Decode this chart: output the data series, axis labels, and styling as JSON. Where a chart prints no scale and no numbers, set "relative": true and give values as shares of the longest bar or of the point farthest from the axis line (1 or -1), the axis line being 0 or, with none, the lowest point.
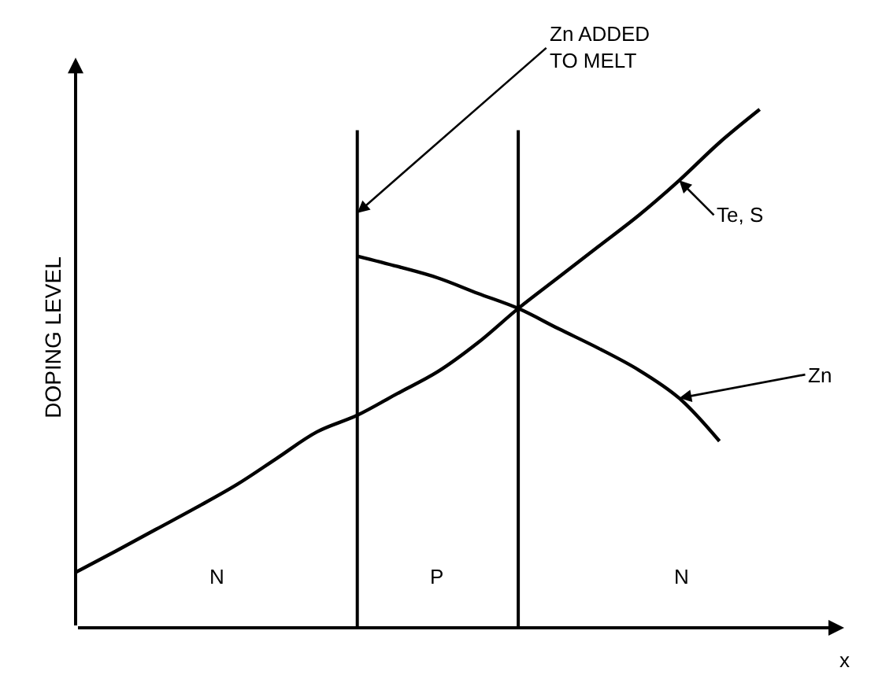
{
  "chart_data": {
    "type": "line",
    "relative": true,
    "xlabel": "x",
    "ylabel": "DOPING LEVEL",
    "tick_labels": false,
    "legend": false,
    "marker": "none",
    "line_style": "solid",
    "categories": [
      null,
      null,
      null,
      null,
      null,
      null,
      null,
      null,
      null,
      null,
      null,
      null,
      null,
      null,
      null,
      null,
      null,
      null
    ],
    "series": [
      {
        "name": "Te, S",
        "color": "#000000",
        "values": [
          0.107,
          0.148,
          0.19,
          0.232,
          0.276,
          0.327,
          0.378,
          0.41,
          0.452,
          0.494,
          0.55,
          0.616,
          0.676,
          0.736,
          0.796,
          0.863,
          0.936,
          1
        ]
      },
      {
        "name": "Zn",
        "color": "#000000",
        "values": [
          null,
          null,
          null,
          null,
          null,
          null,
          null,
          0.717,
          0.697,
          0.675,
          0.645,
          0.616,
          0.577,
          0.539,
          0.497,
          0.443,
          0.36,
          null
        ]
      }
    ],
    "annotations": [
      "Zn ADDED\nTO MELT",
      "N",
      "P",
      "N"
    ]
  }
}
